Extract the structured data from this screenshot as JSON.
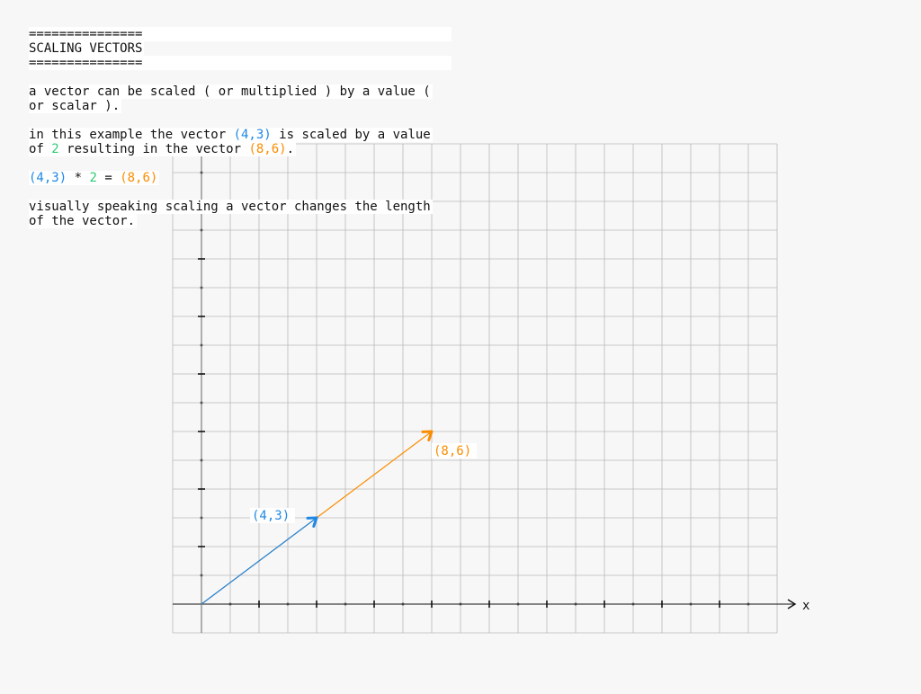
{
  "header": {
    "rule_top": "===============",
    "title": "SCALING VECTORS",
    "rule_bottom": "==============="
  },
  "paragraphs": {
    "intro": "a vector can be scaled ( or multiplied ) by a value ( or scalar ).",
    "example": {
      "before_vector": "in this example the vector ",
      "vector": "(4,3)",
      "middle": " is scaled by a value of ",
      "scalar": "2",
      "after_scalar": " resulting in the vector ",
      "result": "(8,6)",
      "end": "."
    },
    "equation": {
      "vector": "(4,3)",
      "operator": " * ",
      "scalar": "2",
      "equals": " = ",
      "result": "(8,6)"
    },
    "visual": "visually speaking scaling a vector changes the length of the vector."
  },
  "colors": {
    "vector": "#1e88e5",
    "result": "#fb8c00",
    "scalar": "#2ecc71",
    "grid": "#b8b8b8",
    "axis": "#111111"
  },
  "graph": {
    "x_axis_label": "x",
    "x_range": [
      -1,
      20
    ],
    "y_range": [
      -1,
      16
    ],
    "vectors": [
      {
        "name": "original",
        "x": 4,
        "y": 3,
        "label": "(4,3)",
        "color": "#1e88e5"
      },
      {
        "name": "scaled",
        "x": 8,
        "y": 6,
        "label": "(8,6)",
        "color": "#fb8c00"
      }
    ]
  }
}
